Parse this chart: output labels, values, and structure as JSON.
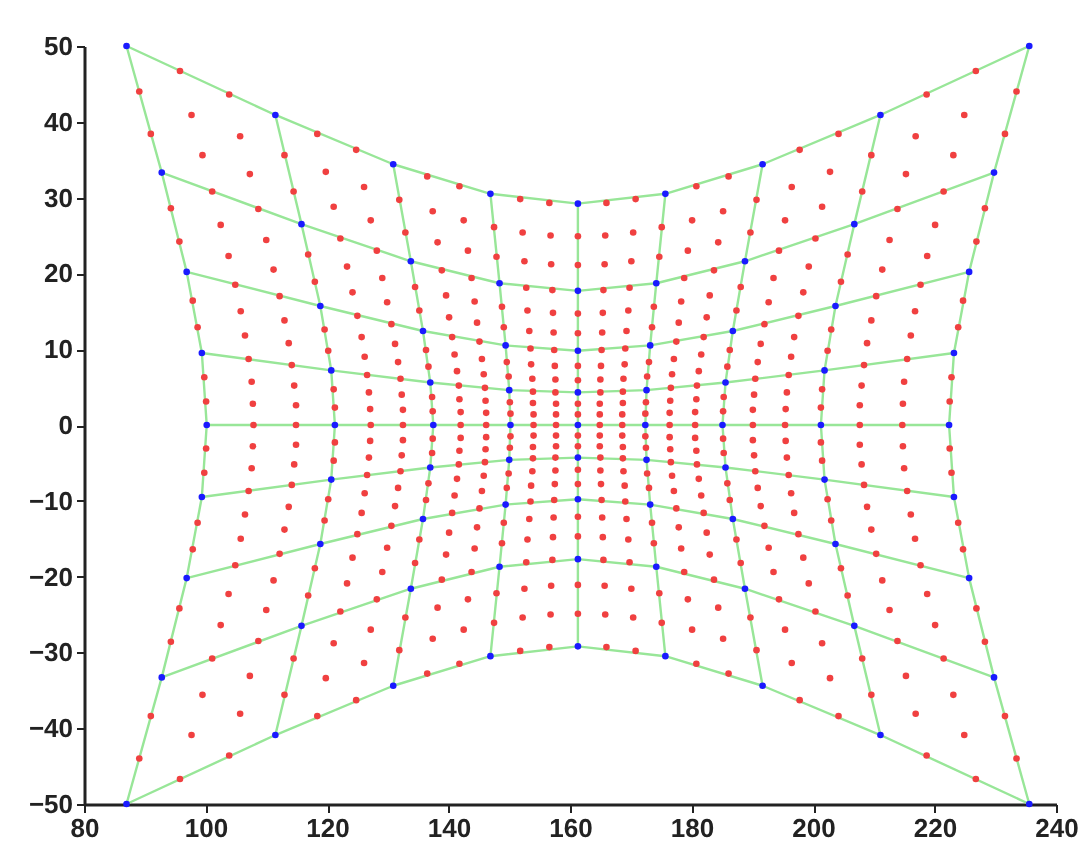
{
  "chart_data": {
    "type": "scatter",
    "xlim": [
      80,
      240
    ],
    "xticks": [
      80,
      100,
      120,
      140,
      160,
      180,
      200,
      220,
      240
    ],
    "ylim": [
      -50,
      50
    ],
    "yticks": [
      -50,
      -40,
      -30,
      -20,
      -10,
      0,
      10,
      20,
      30,
      40,
      50
    ],
    "grid": false,
    "series": [
      {
        "type": "line",
        "color": "#98e698",
        "marker": "none",
        "x": [
          87.0,
          111.5,
          130.9,
          146.9,
          161.3,
          175.7,
          191.7,
          211.1,
          235.6
        ],
        "values": [
          50.0,
          40.9,
          34.4,
          30.5,
          29.2,
          30.5,
          34.4,
          40.9,
          50.0
        ]
      },
      {
        "type": "line",
        "color": "#98e698",
        "marker": "none",
        "x": [
          92.8,
          115.8,
          133.8,
          148.4,
          161.3,
          174.2,
          188.8,
          206.8,
          229.8
        ],
        "values": [
          33.3,
          26.5,
          21.6,
          18.7,
          17.7,
          18.7,
          21.6,
          26.5,
          33.3
        ]
      },
      {
        "type": "line",
        "color": "#98e698",
        "marker": "none",
        "x": [
          96.9,
          118.9,
          135.8,
          149.4,
          161.3,
          173.2,
          186.8,
          203.7,
          225.7
        ],
        "values": [
          20.2,
          15.7,
          12.4,
          10.5,
          9.8,
          10.5,
          12.4,
          15.7,
          20.2
        ]
      },
      {
        "type": "line",
        "color": "#98e698",
        "marker": "none",
        "x": [
          99.4,
          120.7,
          137.0,
          150.0,
          161.3,
          172.6,
          185.6,
          201.9,
          223.2
        ],
        "values": [
          9.5,
          7.2,
          5.6,
          4.6,
          4.3,
          4.6,
          5.6,
          7.2,
          9.5
        ]
      },
      {
        "type": "line",
        "color": "#98e698",
        "marker": "none",
        "x": [
          100.2,
          121.3,
          137.5,
          150.2,
          161.3,
          172.4,
          185.1,
          201.3,
          222.4
        ],
        "values": [
          0,
          0,
          0,
          0,
          0,
          0,
          0,
          0,
          0
        ]
      },
      {
        "type": "line",
        "color": "#98e698",
        "marker": "none",
        "x": [
          99.4,
          120.7,
          137.0,
          150.0,
          161.3,
          172.6,
          185.6,
          201.9,
          223.2
        ],
        "values": [
          -9.5,
          -7.2,
          -5.6,
          -4.6,
          -4.3,
          -4.6,
          -5.6,
          -7.2,
          -9.5
        ]
      },
      {
        "type": "line",
        "color": "#98e698",
        "marker": "none",
        "x": [
          96.9,
          118.9,
          135.8,
          149.4,
          161.3,
          173.2,
          186.8,
          203.7,
          225.7
        ],
        "values": [
          -20.2,
          -15.7,
          -12.4,
          -10.5,
          -9.8,
          -10.5,
          -12.4,
          -15.7,
          -20.2
        ]
      },
      {
        "type": "line",
        "color": "#98e698",
        "marker": "none",
        "x": [
          92.8,
          115.8,
          133.8,
          148.4,
          161.3,
          174.2,
          188.8,
          206.8,
          229.8
        ],
        "values": [
          -33.3,
          -26.5,
          -21.6,
          -18.7,
          -17.7,
          -18.7,
          -21.6,
          -26.5,
          -33.3
        ]
      },
      {
        "type": "line",
        "color": "#98e698",
        "marker": "none",
        "x": [
          87.0,
          111.5,
          130.9,
          146.9,
          161.3,
          175.7,
          191.7,
          211.1,
          235.6
        ],
        "values": [
          -50.0,
          -40.9,
          -34.4,
          -30.5,
          -29.2,
          -30.5,
          -34.4,
          -40.9,
          -50.0
        ]
      },
      {
        "type": "line",
        "color": "#98e698",
        "marker": "none",
        "x": [
          87.0,
          92.8,
          96.9,
          99.4,
          100.2,
          99.4,
          96.9,
          92.8,
          87.0
        ],
        "values": [
          50.0,
          33.3,
          20.2,
          9.5,
          0,
          -9.5,
          -20.2,
          -33.3,
          -50.0
        ]
      },
      {
        "type": "line",
        "color": "#98e698",
        "marker": "none",
        "x": [
          111.5,
          115.8,
          118.9,
          120.7,
          121.3,
          120.7,
          118.9,
          115.8,
          111.5
        ],
        "values": [
          40.9,
          26.5,
          15.7,
          7.2,
          0,
          -7.2,
          -15.7,
          -26.5,
          -40.9
        ]
      },
      {
        "type": "line",
        "color": "#98e698",
        "marker": "none",
        "x": [
          130.9,
          133.8,
          135.8,
          137.0,
          137.5,
          137.0,
          135.8,
          133.8,
          130.9
        ],
        "values": [
          34.4,
          21.6,
          12.4,
          5.6,
          0,
          -5.6,
          -12.4,
          -21.6,
          -34.4
        ]
      },
      {
        "type": "line",
        "color": "#98e698",
        "marker": "none",
        "x": [
          146.9,
          148.4,
          149.4,
          150.0,
          150.2,
          150.0,
          149.4,
          148.4,
          146.9
        ],
        "values": [
          30.5,
          18.7,
          10.5,
          4.6,
          0,
          -4.6,
          -10.5,
          -18.7,
          -30.5
        ]
      },
      {
        "type": "line",
        "color": "#98e698",
        "marker": "none",
        "x": [
          161.3,
          161.3,
          161.3,
          161.3,
          161.3,
          161.3,
          161.3,
          161.3,
          161.3
        ],
        "values": [
          29.2,
          17.7,
          9.8,
          4.3,
          0,
          -4.3,
          -9.8,
          -17.7,
          -29.2
        ]
      },
      {
        "type": "line",
        "color": "#98e698",
        "marker": "none",
        "x": [
          175.7,
          174.2,
          173.2,
          172.6,
          172.4,
          172.6,
          173.2,
          174.2,
          175.7
        ],
        "values": [
          30.5,
          18.7,
          10.5,
          4.6,
          0,
          -4.6,
          -10.5,
          -18.7,
          -30.5
        ]
      },
      {
        "type": "line",
        "color": "#98e698",
        "marker": "none",
        "x": [
          191.7,
          188.8,
          186.8,
          185.6,
          185.1,
          185.6,
          186.8,
          188.8,
          191.7
        ],
        "values": [
          34.4,
          21.6,
          12.4,
          5.6,
          0,
          -5.6,
          -12.4,
          -21.6,
          -34.4
        ]
      },
      {
        "type": "line",
        "color": "#98e698",
        "marker": "none",
        "x": [
          211.1,
          206.8,
          203.7,
          201.9,
          201.3,
          201.9,
          203.7,
          206.8,
          211.1
        ],
        "values": [
          40.9,
          26.5,
          15.7,
          7.2,
          0,
          -7.2,
          -15.7,
          -26.5,
          -40.9
        ]
      },
      {
        "type": "line",
        "color": "#98e698",
        "marker": "none",
        "x": [
          235.6,
          229.8,
          225.7,
          223.2,
          222.4,
          223.2,
          225.7,
          229.8,
          235.6
        ],
        "values": [
          50.0,
          33.3,
          20.2,
          9.5,
          0,
          -9.5,
          -20.2,
          -33.3,
          -50.0
        ]
      },
      {
        "type": "scatter",
        "color": "#f04040",
        "marker": "circle",
        "x": [
          95.8,
          103.9,
          118.4,
          124.8,
          136.5,
          141.8,
          151.8,
          156.6,
          166.0,
          170.8,
          180.8,
          186.1,
          197.8,
          204.2,
          218.7,
          226.8
        ],
        "values": [
          46.7,
          43.6,
          38.4,
          36.3,
          32.8,
          31.5,
          29.8,
          29.3,
          29.3,
          29.8,
          31.5,
          32.8,
          36.3,
          38.4,
          43.6,
          46.7
        ]
      },
      {
        "type": "scatter",
        "color": "#f04040",
        "marker": "circle",
        "x": [
          89.1,
          97.7,
          105.7,
          113.0,
          119.8,
          126.1,
          131.9,
          137.4,
          142.5,
          147.5,
          152.2,
          156.8,
          161.3,
          165.8,
          170.4,
          175.1,
          180.1,
          185.2,
          190.7,
          196.5,
          202.8,
          209.6,
          216.9,
          224.9,
          233.5
        ],
        "values": [
          44.0,
          40.9,
          38.1,
          35.6,
          33.4,
          31.4,
          29.7,
          28.2,
          27.0,
          26.1,
          25.4,
          25.0,
          24.9,
          25.0,
          25.4,
          26.1,
          27.0,
          28.2,
          29.7,
          31.4,
          33.4,
          35.6,
          38.1,
          40.9,
          44.0
        ]
      },
      {
        "type": "scatter",
        "color": "#f04040",
        "marker": "circle",
        "x": [
          91.0,
          99.5,
          107.3,
          114.5,
          121.1,
          127.2,
          132.9,
          138.2,
          143.2,
          147.9,
          152.5,
          156.9,
          161.3,
          165.7,
          170.1,
          174.7,
          179.4,
          184.4,
          189.7,
          195.4,
          201.5,
          208.1,
          215.3,
          223.1,
          231.6
        ],
        "values": [
          38.4,
          35.6,
          33.1,
          30.8,
          28.8,
          27.0,
          25.4,
          24.1,
          23.0,
          22.2,
          21.6,
          21.2,
          21.1,
          21.2,
          21.6,
          22.2,
          23.0,
          24.1,
          25.4,
          27.0,
          28.8,
          30.8,
          33.1,
          35.6,
          38.4
        ]
      },
      {
        "type": "scatter",
        "color": "#f04040",
        "marker": "circle",
        "x": [
          101.1,
          108.7,
          122.2,
          128.2,
          138.9,
          143.8,
          152.8,
          157.1,
          165.5,
          169.8,
          178.8,
          183.7,
          194.4,
          200.4,
          213.9,
          221.5
        ],
        "values": [
          30.8,
          28.5,
          24.6,
          23.0,
          20.4,
          19.4,
          18.1,
          17.8,
          17.8,
          18.1,
          19.4,
          20.4,
          23.0,
          24.6,
          28.5,
          30.8
        ]
      },
      {
        "type": "scatter",
        "color": "#f04040",
        "marker": "circle",
        "x": [
          94.3,
          102.5,
          110.0,
          116.9,
          123.3,
          129.1,
          134.5,
          139.6,
          144.3,
          148.8,
          153.0,
          157.2,
          161.3,
          165.4,
          169.6,
          173.8,
          178.3,
          183.0,
          188.1,
          193.5,
          199.3,
          205.7,
          212.6,
          220.1,
          228.3
        ],
        "values": [
          28.6,
          26.4,
          24.4,
          22.5,
          20.9,
          19.4,
          18.2,
          17.1,
          16.3,
          15.6,
          15.1,
          14.8,
          14.7,
          14.8,
          15.1,
          15.6,
          16.3,
          17.1,
          18.2,
          19.4,
          20.9,
          22.5,
          24.4,
          26.4,
          28.6
        ]
      },
      {
        "type": "scatter",
        "color": "#f04040",
        "marker": "circle",
        "x": [
          95.7,
          103.8,
          111.2,
          118.0,
          124.2,
          129.9,
          135.2,
          140.1,
          144.7,
          149.1,
          153.3,
          157.3,
          161.3,
          165.3,
          169.3,
          173.5,
          177.9,
          182.5,
          187.4,
          192.7,
          198.4,
          204.6,
          211.4,
          218.8,
          226.9
        ],
        "values": [
          24.2,
          22.3,
          20.5,
          18.9,
          17.5,
          16.2,
          15.1,
          14.2,
          13.5,
          12.9,
          12.4,
          12.2,
          12.1,
          12.2,
          12.4,
          12.9,
          13.5,
          14.2,
          15.1,
          16.2,
          17.5,
          18.9,
          20.5,
          22.3,
          24.2
        ]
      },
      {
        "type": "scatter",
        "color": "#f04040",
        "marker": "circle",
        "x": [
          104.9,
          112.2,
          125.0,
          130.6,
          140.6,
          145.1,
          153.5,
          157.4,
          165.2,
          169.1,
          177.5,
          182.0,
          192.0,
          197.6,
          210.4,
          217.7
        ],
        "values": [
          18.5,
          17.0,
          14.4,
          13.3,
          11.6,
          11.0,
          10.1,
          9.9,
          9.9,
          10.1,
          11.0,
          11.6,
          13.3,
          14.4,
          17.0,
          18.5
        ]
      },
      {
        "type": "scatter",
        "color": "#f04040",
        "marker": "circle",
        "x": [
          97.9,
          105.8,
          113.0,
          119.6,
          125.7,
          131.2,
          136.3,
          141.0,
          145.5,
          149.6,
          153.6,
          157.5,
          161.3,
          165.1,
          169.0,
          173.0,
          177.1,
          181.6,
          186.3,
          191.4,
          196.9,
          203.0,
          209.6,
          216.8,
          224.7
        ],
        "values": [
          16.4,
          15.0,
          13.8,
          12.6,
          11.6,
          10.7,
          9.9,
          9.3,
          8.7,
          8.3,
          8.0,
          7.8,
          7.8,
          7.8,
          8.0,
          8.3,
          8.7,
          9.3,
          9.9,
          10.7,
          11.6,
          12.6,
          13.8,
          15.0,
          16.4
        ]
      },
      {
        "type": "scatter",
        "color": "#f04040",
        "marker": "circle",
        "x": [
          98.7,
          106.5,
          113.7,
          120.2,
          126.2,
          131.7,
          136.7,
          141.4,
          145.8,
          149.9,
          153.8,
          157.6,
          161.3,
          165.0,
          168.8,
          172.7,
          176.8,
          181.2,
          185.9,
          190.9,
          196.4,
          202.4,
          208.9,
          216.1,
          223.9
        ],
        "values": [
          12.9,
          11.8,
          10.8,
          9.8,
          9.0,
          8.3,
          7.7,
          7.1,
          6.7,
          6.4,
          6.1,
          6.0,
          5.9,
          6.0,
          6.1,
          6.4,
          6.7,
          7.1,
          7.7,
          8.3,
          9.0,
          9.8,
          10.8,
          11.8,
          12.9
        ]
      },
      {
        "type": "scatter",
        "color": "#f04040",
        "marker": "circle",
        "x": [
          107.1,
          114.2,
          126.6,
          132.1,
          141.7,
          146.0,
          153.9,
          157.6,
          165.0,
          168.7,
          176.6,
          180.9,
          190.5,
          196.0,
          208.4,
          215.5
        ],
        "values": [
          8.7,
          7.9,
          6.6,
          6.1,
          5.2,
          4.9,
          4.4,
          4.3,
          4.3,
          4.4,
          4.9,
          5.2,
          6.1,
          6.6,
          7.9,
          8.7
        ]
      },
      {
        "type": "scatter",
        "color": "#f04040",
        "marker": "circle",
        "x": [
          99.8,
          107.6,
          114.6,
          121.1,
          126.9,
          132.3,
          137.3,
          141.8,
          146.1,
          150.1,
          153.9,
          157.7,
          161.3,
          164.9,
          168.7,
          172.5,
          176.5,
          180.8,
          185.3,
          190.3,
          195.7,
          201.5,
          208.0,
          215.0,
          222.8
        ],
        "values": [
          6.3,
          5.7,
          5.2,
          4.7,
          4.3,
          4.0,
          3.7,
          3.4,
          3.2,
          3.0,
          2.9,
          2.8,
          2.8,
          2.8,
          2.9,
          3.0,
          3.2,
          3.4,
          3.7,
          4.0,
          4.3,
          4.7,
          5.2,
          5.7,
          6.3
        ]
      },
      {
        "type": "scatter",
        "color": "#f04040",
        "marker": "circle",
        "x": [
          100.1,
          107.8,
          114.9,
          121.3,
          127.1,
          132.5,
          137.4,
          142.0,
          146.2,
          150.2,
          154.0,
          157.7,
          161.3,
          164.9,
          168.6,
          172.4,
          176.4,
          180.6,
          185.2,
          190.1,
          195.5,
          201.3,
          207.7,
          214.8,
          222.5
        ],
        "values": [
          3.1,
          2.8,
          2.6,
          2.3,
          2.1,
          2.0,
          1.8,
          1.7,
          1.6,
          1.5,
          1.4,
          1.4,
          1.4,
          1.4,
          1.4,
          1.5,
          1.6,
          1.7,
          1.8,
          2.0,
          2.1,
          2.3,
          2.6,
          2.8,
          3.1
        ]
      },
      {
        "type": "scatter",
        "color": "#f04040",
        "marker": "circle",
        "x": [
          107.9,
          114.9,
          127.2,
          132.5,
          142.0,
          146.2,
          154.0,
          157.7,
          164.9,
          168.6,
          176.4,
          180.6,
          190.1,
          195.4,
          207.7,
          214.7
        ],
        "values": [
          0,
          0,
          0,
          0,
          0,
          0,
          0,
          0,
          0,
          0,
          0,
          0,
          0,
          0,
          0,
          0
        ]
      },
      {
        "type": "scatter",
        "color": "#f04040",
        "marker": "circle",
        "x": [
          100.1,
          107.8,
          114.9,
          121.3,
          127.1,
          132.5,
          137.4,
          142.0,
          146.2,
          150.2,
          154.0,
          157.7,
          161.3,
          164.9,
          168.6,
          172.4,
          176.4,
          180.6,
          185.2,
          190.1,
          195.5,
          201.3,
          207.7,
          214.8,
          222.5
        ],
        "values": [
          -3.1,
          -2.8,
          -2.6,
          -2.3,
          -2.1,
          -2.0,
          -1.8,
          -1.7,
          -1.6,
          -1.5,
          -1.4,
          -1.4,
          -1.4,
          -1.4,
          -1.4,
          -1.5,
          -1.6,
          -1.7,
          -1.8,
          -2.0,
          -2.1,
          -2.3,
          -2.6,
          -2.8,
          -3.1
        ]
      },
      {
        "type": "scatter",
        "color": "#f04040",
        "marker": "circle",
        "x": [
          99.8,
          107.6,
          114.6,
          121.1,
          126.9,
          132.3,
          137.3,
          141.8,
          146.1,
          150.1,
          153.9,
          157.7,
          161.3,
          164.9,
          168.7,
          172.5,
          176.5,
          180.8,
          185.3,
          190.3,
          195.7,
          201.5,
          208.0,
          215.0,
          222.8
        ],
        "values": [
          -6.3,
          -5.7,
          -5.2,
          -4.7,
          -4.3,
          -4.0,
          -3.7,
          -3.4,
          -3.2,
          -3.0,
          -2.9,
          -2.8,
          -2.8,
          -2.8,
          -2.9,
          -3.0,
          -3.2,
          -3.4,
          -3.7,
          -4.0,
          -4.3,
          -4.7,
          -5.2,
          -5.7,
          -6.3
        ]
      },
      {
        "type": "scatter",
        "color": "#f04040",
        "marker": "circle",
        "x": [
          107.1,
          114.2,
          126.6,
          132.1,
          141.7,
          146.0,
          153.9,
          157.6,
          165.0,
          168.7,
          176.6,
          180.9,
          190.5,
          196.0,
          208.4,
          215.5
        ],
        "values": [
          -8.7,
          -7.9,
          -6.6,
          -6.1,
          -5.2,
          -4.9,
          -4.4,
          -4.3,
          -4.3,
          -4.4,
          -4.9,
          -5.2,
          -6.1,
          -6.6,
          -7.9,
          -8.7
        ]
      },
      {
        "type": "scatter",
        "color": "#f04040",
        "marker": "circle",
        "x": [
          98.7,
          106.5,
          113.7,
          120.2,
          126.2,
          131.7,
          136.7,
          141.4,
          145.8,
          149.9,
          153.8,
          157.6,
          161.3,
          165.0,
          168.8,
          172.7,
          176.8,
          181.2,
          185.9,
          190.9,
          196.4,
          202.4,
          208.9,
          216.1,
          223.9
        ],
        "values": [
          -12.9,
          -11.8,
          -10.8,
          -9.8,
          -9.0,
          -8.3,
          -7.7,
          -7.1,
          -6.7,
          -6.4,
          -6.1,
          -6.0,
          -5.9,
          -6.0,
          -6.1,
          -6.4,
          -6.7,
          -7.1,
          -7.7,
          -8.3,
          -9.0,
          -9.8,
          -10.8,
          -11.8,
          -12.9
        ]
      },
      {
        "type": "scatter",
        "color": "#f04040",
        "marker": "circle",
        "x": [
          97.9,
          105.8,
          113.0,
          119.6,
          125.7,
          131.2,
          136.3,
          141.0,
          145.5,
          149.6,
          153.6,
          157.5,
          161.3,
          165.1,
          169.0,
          173.0,
          177.1,
          181.6,
          186.3,
          191.4,
          196.9,
          203.0,
          209.6,
          216.8,
          224.7
        ],
        "values": [
          -16.4,
          -15.0,
          -13.8,
          -12.6,
          -11.6,
          -10.7,
          -9.9,
          -9.3,
          -8.7,
          -8.3,
          -8.0,
          -7.8,
          -7.8,
          -7.8,
          -8.0,
          -8.3,
          -8.7,
          -9.3,
          -9.9,
          -10.7,
          -11.6,
          -12.6,
          -13.8,
          -15.0,
          -16.4
        ]
      },
      {
        "type": "scatter",
        "color": "#f04040",
        "marker": "circle",
        "x": [
          104.9,
          112.2,
          125.0,
          130.6,
          140.6,
          145.1,
          153.5,
          157.4,
          165.2,
          169.1,
          177.5,
          182.0,
          192.0,
          197.6,
          210.4,
          217.7
        ],
        "values": [
          -18.5,
          -17.0,
          -14.4,
          -13.3,
          -11.6,
          -11.0,
          -10.1,
          -9.9,
          -9.9,
          -10.1,
          -11.0,
          -11.6,
          -13.3,
          -14.4,
          -17.0,
          -18.5
        ]
      },
      {
        "type": "scatter",
        "color": "#f04040",
        "marker": "circle",
        "x": [
          95.7,
          103.8,
          111.2,
          118.0,
          124.2,
          129.9,
          135.2,
          140.1,
          144.7,
          149.1,
          153.3,
          157.3,
          161.3,
          165.3,
          169.3,
          173.5,
          177.9,
          182.5,
          187.4,
          192.7,
          198.4,
          204.6,
          211.4,
          218.8,
          226.9
        ],
        "values": [
          -24.2,
          -22.3,
          -20.5,
          -18.9,
          -17.5,
          -16.2,
          -15.1,
          -14.2,
          -13.5,
          -12.9,
          -12.4,
          -12.2,
          -12.1,
          -12.2,
          -12.4,
          -12.9,
          -13.5,
          -14.2,
          -15.1,
          -16.2,
          -17.5,
          -18.9,
          -20.5,
          -22.3,
          -24.2
        ]
      },
      {
        "type": "scatter",
        "color": "#f04040",
        "marker": "circle",
        "x": [
          94.3,
          102.5,
          110.0,
          116.9,
          123.3,
          129.1,
          134.5,
          139.6,
          144.3,
          148.8,
          153.0,
          157.2,
          161.3,
          165.4,
          169.6,
          173.8,
          178.3,
          183.0,
          188.1,
          193.5,
          199.3,
          205.7,
          212.6,
          220.1,
          228.3
        ],
        "values": [
          -28.6,
          -26.4,
          -24.4,
          -22.5,
          -20.9,
          -19.4,
          -18.2,
          -17.1,
          -16.3,
          -15.6,
          -15.1,
          -14.8,
          -14.7,
          -14.8,
          -15.1,
          -15.6,
          -16.3,
          -17.1,
          -18.2,
          -19.4,
          -20.9,
          -22.5,
          -24.4,
          -26.4,
          -28.6
        ]
      },
      {
        "type": "scatter",
        "color": "#f04040",
        "marker": "circle",
        "x": [
          101.1,
          108.7,
          122.2,
          128.2,
          138.9,
          143.8,
          152.8,
          157.1,
          165.5,
          169.8,
          178.8,
          183.7,
          194.4,
          200.4,
          213.9,
          221.5
        ],
        "values": [
          -30.8,
          -28.5,
          -24.6,
          -23.0,
          -20.4,
          -19.4,
          -18.1,
          -17.8,
          -17.8,
          -18.1,
          -19.4,
          -20.4,
          -23.0,
          -24.6,
          -28.5,
          -30.8
        ]
      },
      {
        "type": "scatter",
        "color": "#f04040",
        "marker": "circle",
        "x": [
          91.0,
          99.5,
          107.3,
          114.5,
          121.1,
          127.2,
          132.9,
          138.2,
          143.2,
          147.9,
          152.5,
          156.9,
          161.3,
          165.7,
          170.1,
          174.7,
          179.4,
          184.4,
          189.7,
          195.4,
          201.5,
          208.1,
          215.3,
          223.1,
          231.6
        ],
        "values": [
          -38.4,
          -35.6,
          -33.1,
          -30.8,
          -28.8,
          -27.0,
          -25.4,
          -24.1,
          -23.0,
          -22.2,
          -21.6,
          -21.2,
          -21.1,
          -21.2,
          -21.6,
          -22.2,
          -23.0,
          -24.1,
          -25.4,
          -27.0,
          -28.8,
          -30.8,
          -33.1,
          -35.6,
          -38.4
        ]
      },
      {
        "type": "scatter",
        "color": "#f04040",
        "marker": "circle",
        "x": [
          89.1,
          97.7,
          105.7,
          113.0,
          119.8,
          126.1,
          131.9,
          137.4,
          142.5,
          147.5,
          152.2,
          156.8,
          161.3,
          165.8,
          170.4,
          175.1,
          180.1,
          185.2,
          190.7,
          196.5,
          202.8,
          209.6,
          216.9,
          224.9,
          233.5
        ],
        "values": [
          -44.0,
          -40.9,
          -38.1,
          -35.6,
          -33.4,
          -31.4,
          -29.7,
          -28.2,
          -27.0,
          -26.1,
          -25.4,
          -25.0,
          -24.9,
          -25.0,
          -25.4,
          -26.1,
          -27.0,
          -28.2,
          -29.7,
          -31.4,
          -33.4,
          -35.6,
          -38.1,
          -40.9,
          -44.0
        ]
      },
      {
        "type": "scatter",
        "color": "#f04040",
        "marker": "circle",
        "x": [
          95.8,
          103.9,
          118.4,
          124.8,
          136.5,
          141.8,
          151.8,
          156.6,
          166.0,
          170.8,
          180.8,
          186.1,
          197.8,
          204.2,
          218.7,
          226.8
        ],
        "values": [
          -46.7,
          -43.6,
          -38.4,
          -36.3,
          -32.8,
          -31.5,
          -29.8,
          -29.3,
          -29.3,
          -29.8,
          -31.5,
          -32.8,
          -36.3,
          -38.4,
          -43.6,
          -46.7
        ]
      },
      {
        "type": "scatter",
        "color": "#1a1aff",
        "marker": "circle",
        "x": [
          87.0,
          111.5,
          130.9,
          146.9,
          161.3,
          175.7,
          191.7,
          211.1,
          235.6,
          92.8,
          115.8,
          133.8,
          148.4,
          161.3,
          174.2,
          188.8,
          206.8,
          229.8,
          96.9,
          118.9,
          135.8,
          149.4,
          161.3,
          173.2,
          186.8,
          203.7,
          225.7,
          99.4,
          120.7,
          137.0,
          150.0,
          161.3,
          172.6,
          185.6,
          201.9,
          223.2,
          100.2,
          121.3,
          137.5,
          150.2,
          161.3,
          172.4,
          185.1,
          201.3,
          222.4,
          99.4,
          120.7,
          137.0,
          150.0,
          161.3,
          172.6,
          185.6,
          201.9,
          223.2,
          96.9,
          118.9,
          135.8,
          149.4,
          161.3,
          173.2,
          186.8,
          203.7,
          225.7,
          92.8,
          115.8,
          133.8,
          148.4,
          161.3,
          174.2,
          188.8,
          206.8,
          229.8,
          87.0,
          111.5,
          130.9,
          146.9,
          161.3,
          175.7,
          191.7,
          211.1,
          235.6
        ],
        "values": [
          50.0,
          40.9,
          34.4,
          30.5,
          29.2,
          30.5,
          34.4,
          40.9,
          50.0,
          33.3,
          26.5,
          21.6,
          18.7,
          17.7,
          18.7,
          21.6,
          26.5,
          33.3,
          20.2,
          15.7,
          12.4,
          10.5,
          9.8,
          10.5,
          12.4,
          15.7,
          20.2,
          9.5,
          7.2,
          5.6,
          4.6,
          4.3,
          4.6,
          5.6,
          7.2,
          9.5,
          0,
          0,
          0,
          0,
          0,
          0,
          0,
          0,
          0,
          -9.5,
          -7.2,
          -5.6,
          -4.6,
          -4.3,
          -4.6,
          -5.6,
          -7.2,
          -9.5,
          -20.2,
          -15.7,
          -12.4,
          -10.5,
          -9.8,
          -10.5,
          -12.4,
          -15.7,
          -20.2,
          -33.3,
          -26.5,
          -21.6,
          -18.7,
          -17.7,
          -18.7,
          -21.6,
          -26.5,
          -33.3,
          -50.0,
          -40.9,
          -34.4,
          -30.5,
          -29.2,
          -30.5,
          -34.4,
          -40.9,
          -50.0
        ]
      }
    ]
  }
}
